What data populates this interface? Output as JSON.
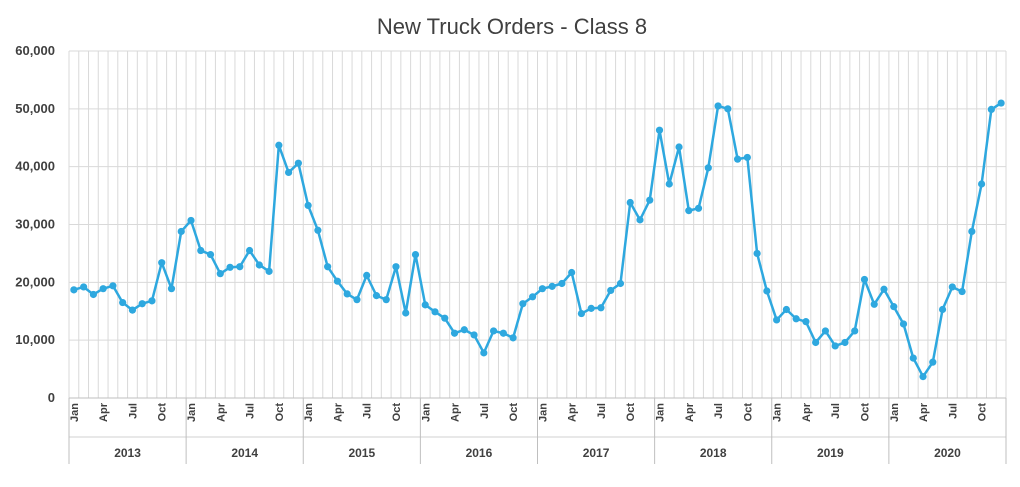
{
  "chart_data": {
    "type": "line",
    "title": "New Truck Orders - Class 8",
    "xlabel": "",
    "ylabel": "",
    "ylim": [
      0,
      60000
    ],
    "yticks": [
      "0",
      "10,000",
      "20,000",
      "30,000",
      "40,000",
      "50,000",
      "60,000"
    ],
    "grid": "vertical-minor",
    "legend": "none",
    "color": "#2ea8df",
    "years": [
      "2013",
      "2014",
      "2015",
      "2016",
      "2017",
      "2018",
      "2019",
      "2020"
    ],
    "month_ticks": [
      "Jan",
      "Apr",
      "Jul",
      "Oct"
    ],
    "months_per_year": 12,
    "series": [
      {
        "values": [
          18700,
          19200,
          17900,
          18900,
          19400,
          16500,
          15200,
          16300,
          16800,
          23400,
          18900,
          28800,
          30700,
          25500,
          24800,
          21500,
          22600,
          22700,
          25500,
          23000,
          21900,
          43700,
          39000,
          40600,
          33300,
          29000,
          22700,
          20200,
          18000,
          17000,
          21200,
          17700,
          17000,
          22700,
          14700,
          24800,
          16100,
          14900,
          13800,
          11200,
          11800,
          10900,
          7800,
          11600,
          11200,
          10400,
          16300,
          17500,
          18900,
          19300,
          19800,
          21700,
          14600,
          15500,
          15600,
          18600,
          19800,
          33800,
          30800,
          34200,
          46300,
          37000,
          43400,
          32400,
          32800,
          39800,
          50500,
          50000,
          41300,
          41600,
          25000,
          18500,
          13500,
          15300,
          13700,
          13200,
          9600,
          11600,
          9000,
          9600,
          11600,
          20500,
          16200,
          18800,
          15800,
          12800,
          6900,
          3700,
          6200,
          15300,
          19200,
          18400,
          28800,
          37000,
          49900,
          51000
        ]
      }
    ]
  }
}
